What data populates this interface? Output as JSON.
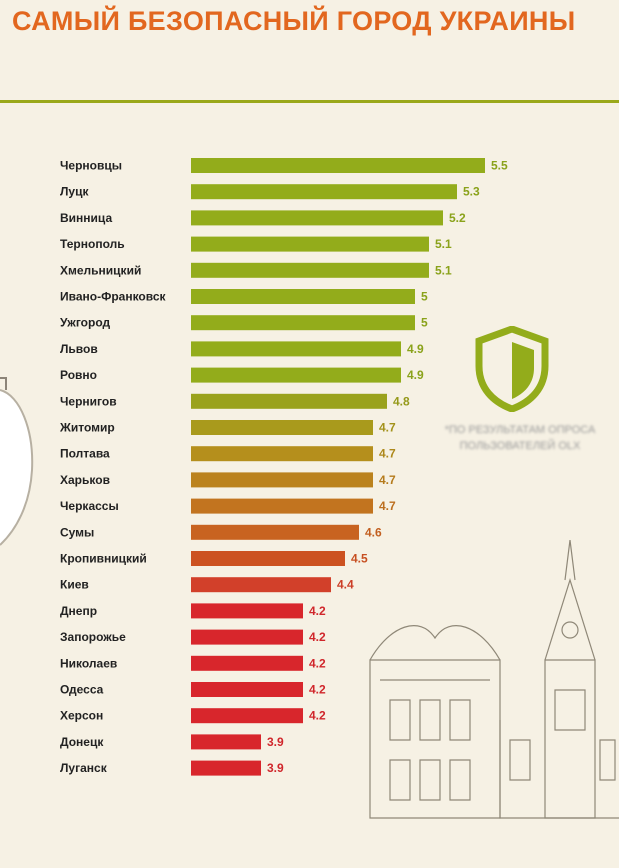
{
  "page": {
    "title": "САМЫЙ БЕЗОПАСНЫЙ ГОРОД УКРАИНЫ"
  },
  "note": {
    "text": "*ПО РЕЗУЛЬТАТАМ ОПРОСА ПОЛЬЗОВАТЕЛЕЙ OLX"
  },
  "icons": {
    "badge": "shield-icon"
  },
  "chart_data": {
    "type": "bar",
    "orientation": "horizontal",
    "title": "САМЫЙ БЕЗОПАСНЫЙ ГОРОД УКРАИНЫ",
    "categories": [
      "Черновцы",
      "Луцк",
      "Винница",
      "Тернополь",
      "Хмельницкий",
      "Ивано-Франковск",
      "Ужгород",
      "Львов",
      "Ровно",
      "Чернигов",
      "Житомир",
      "Полтава",
      "Харьков",
      "Черкассы",
      "Сумы",
      "Кропивницкий",
      "Киев",
      "Днепр",
      "Запорожье",
      "Николаев",
      "Одесса",
      "Херсон",
      "Донецк",
      "Луганск"
    ],
    "values": [
      5.5,
      5.3,
      5.2,
      5.1,
      5.1,
      5,
      5,
      4.9,
      4.9,
      4.8,
      4.7,
      4.7,
      4.7,
      4.7,
      4.6,
      4.5,
      4.4,
      4.2,
      4.2,
      4.2,
      4.2,
      4.2,
      3.9,
      3.9
    ],
    "value_labels": [
      "5.5",
      "5.3",
      "5.2",
      "5.1",
      "5.1",
      "5",
      "5",
      "4.9",
      "4.9",
      "4.8",
      "4.7",
      "4.7",
      "4.7",
      "4.7",
      "4.6",
      "4.5",
      "4.4",
      "4.2",
      "4.2",
      "4.2",
      "4.2",
      "4.2",
      "3.9",
      "3.9"
    ],
    "bar_colors": [
      "#93ac1b",
      "#93ac1b",
      "#93ac1b",
      "#93ac1b",
      "#93ac1b",
      "#93ac1b",
      "#93ac1b",
      "#93ac1b",
      "#93ac1b",
      "#9aa21c",
      "#a99a1c",
      "#b58f1c",
      "#bb821d",
      "#c2741f",
      "#c86320",
      "#cc5221",
      "#d2402a",
      "#d8262c",
      "#d8262c",
      "#d8262c",
      "#d8262c",
      "#d8262c",
      "#d8262c",
      "#d8262c"
    ],
    "label_colors": [
      "#8aa21a",
      "#8aa21a",
      "#8aa21a",
      "#8aa21a",
      "#8aa21a",
      "#8aa21a",
      "#8aa21a",
      "#8aa21a",
      "#8aa21a",
      "#95991a",
      "#a3921b",
      "#ad881b",
      "#b57b1c",
      "#bc6e1e",
      "#c25f20",
      "#c74f21",
      "#cc3f27",
      "#d0262b",
      "#d0262b",
      "#d0262b",
      "#d0262b",
      "#d0262b",
      "#d0262b",
      "#d0262b"
    ],
    "xlim": [
      3.4,
      5.5
    ],
    "grid": false,
    "xlabel": "",
    "ylabel": ""
  }
}
